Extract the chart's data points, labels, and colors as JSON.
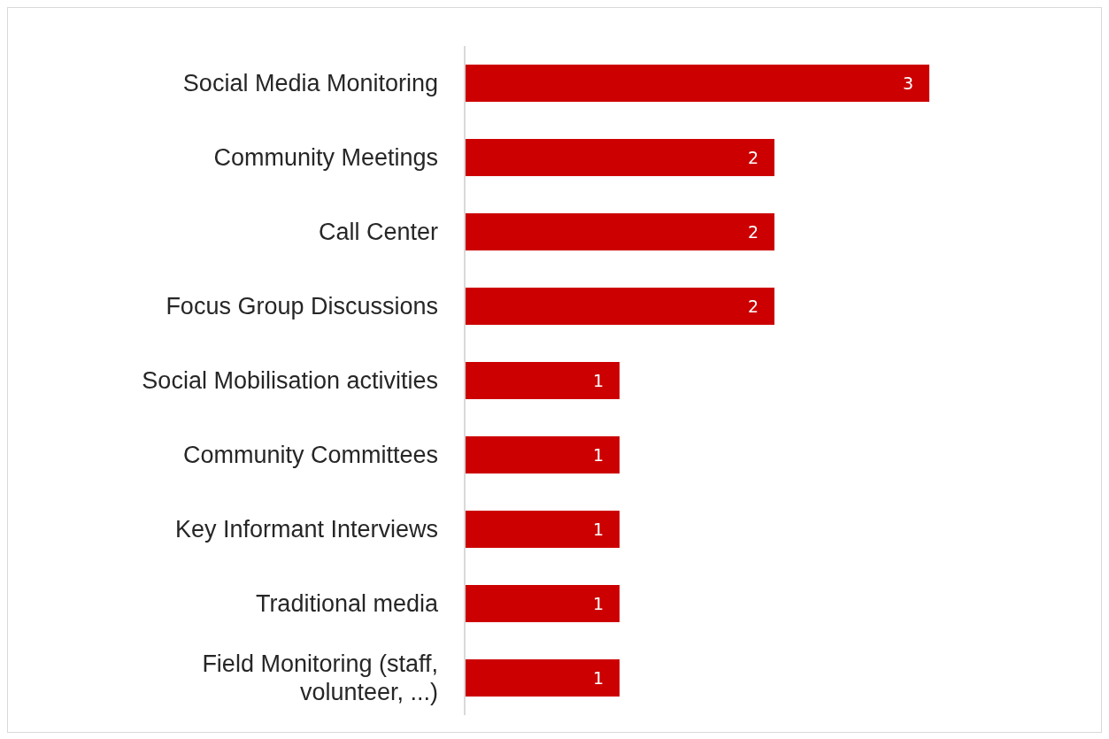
{
  "chart_data": {
    "type": "bar",
    "orientation": "horizontal",
    "categories": [
      "Social Media Monitoring",
      "Community Meetings",
      "Call Center",
      "Focus Group Discussions",
      "Social Mobilisation activities",
      "Community Committees",
      "Key Informant Interviews",
      "Traditional media",
      "Field Monitoring (staff, volunteer, ...)"
    ],
    "values": [
      3,
      2,
      2,
      2,
      1,
      1,
      1,
      1,
      1
    ],
    "color": "#cc0000",
    "data_labels": true
  }
}
